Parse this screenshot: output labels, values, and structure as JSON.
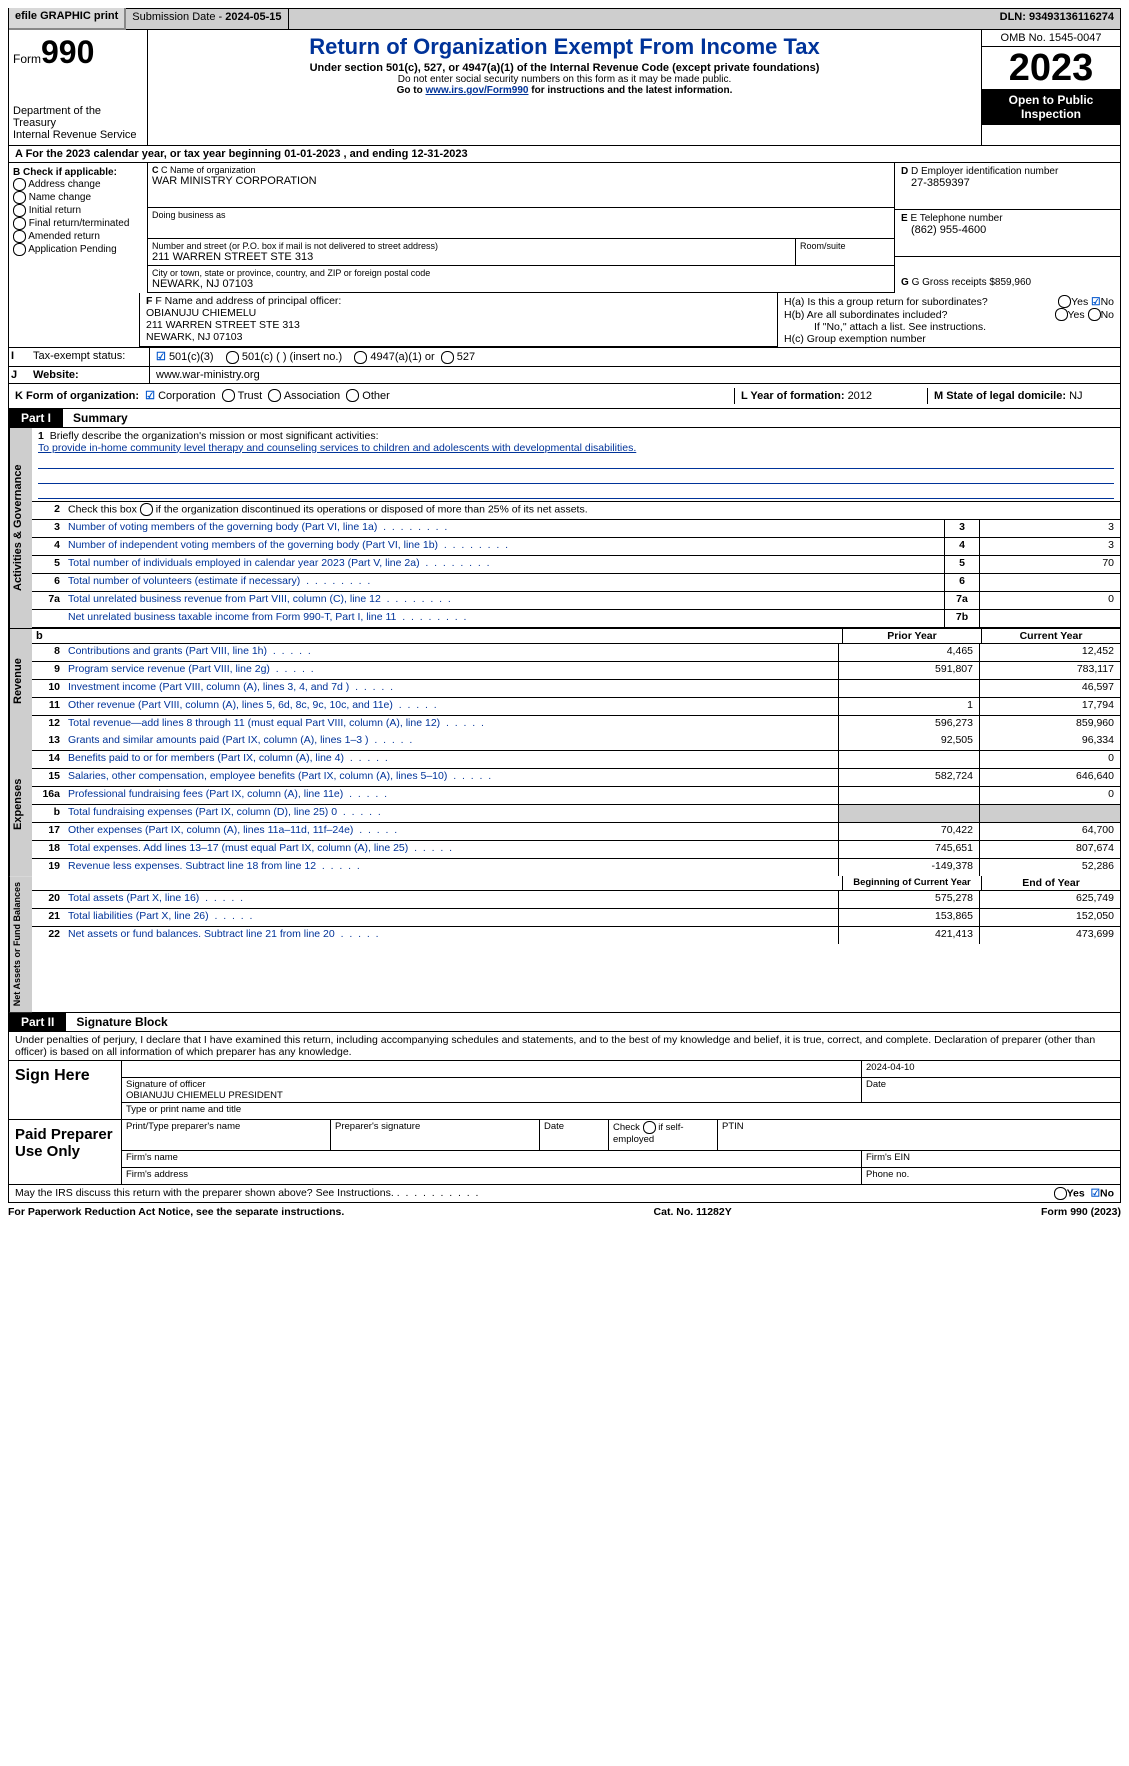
{
  "topbar": {
    "efile": "efile GRAPHIC print",
    "submission_label": "Submission Date - ",
    "submission_date": "2024-05-15",
    "dln_label": "DLN: ",
    "dln": "93493136116274"
  },
  "header": {
    "form_word": "Form",
    "form_num": "990",
    "dept1": "Department of the Treasury",
    "dept2": "Internal Revenue Service",
    "title": "Return of Organization Exempt From Income Tax",
    "sub": "Under section 501(c), 527, or 4947(a)(1) of the Internal Revenue Code (except private foundations)",
    "note1": "Do not enter social security numbers on this form as it may be made public.",
    "note2a": "Go to ",
    "note2_link": "www.irs.gov/Form990",
    "note2b": " for instructions and the latest information.",
    "omb": "OMB No. 1545-0047",
    "year": "2023",
    "open": "Open to Public Inspection"
  },
  "line_a": "A For the 2023 calendar year, or tax year beginning 01-01-2023    , and ending 12-31-2023",
  "col_b": {
    "head": "B Check if applicable:",
    "items": [
      "Address change",
      "Name change",
      "Initial return",
      "Final return/terminated",
      "Amended return",
      "Application Pending"
    ]
  },
  "col_c": {
    "name_lbl": "C Name of organization",
    "name": "WAR MINISTRY CORPORATION",
    "dba_lbl": "Doing business as",
    "dba": "",
    "addr_lbl": "Number and street (or P.O. box if mail is not delivered to street address)",
    "addr": "211 WARREN STREET STE 313",
    "room_lbl": "Room/suite",
    "room": "",
    "city_lbl": "City or town, state or province, country, and ZIP or foreign postal code",
    "city": "NEWARK, NJ  07103"
  },
  "col_de": {
    "d_lbl": "D Employer identification number",
    "d_val": "27-3859397",
    "e_lbl": "E Telephone number",
    "e_val": "(862) 955-4600",
    "g_lbl": "G Gross receipts $ ",
    "g_val": "859,960"
  },
  "row_f": {
    "lbl": "F Name and address of principal officer:",
    "name": "OBIANUJU CHIEMELU",
    "addr1": "211 WARREN STREET STE 313",
    "addr2": "NEWARK, NJ  07103"
  },
  "row_h": {
    "ha": "H(a)  Is this a group return for subordinates?",
    "hb": "H(b)  Are all subordinates included?",
    "hbnote": "If \"No,\" attach a list. See instructions.",
    "hc": "H(c)  Group exemption number ",
    "yes": "Yes",
    "no": "No"
  },
  "row_i": {
    "lbl": "Tax-exempt status:",
    "o1": "501(c)(3)",
    "o2": "501(c) (  ) (insert no.)",
    "o3": "4947(a)(1) or",
    "o4": "527"
  },
  "row_j": {
    "lbl": "Website: ",
    "val": "www.war-ministry.org"
  },
  "row_k": {
    "lbl": "K Form of organization:",
    "o1": "Corporation",
    "o2": "Trust",
    "o3": "Association",
    "o4": "Other"
  },
  "row_l": {
    "lbl": "L Year of formation: ",
    "val": "2012"
  },
  "row_m": {
    "lbl": "M State of legal domicile: ",
    "val": "NJ"
  },
  "part1": {
    "tab": "Part I",
    "title": "Summary"
  },
  "ag": {
    "header": "Activities & Governance",
    "l1_lbl": "Briefly describe the organization's mission or most significant activities:",
    "l1_val": "To provide in-home community level therapy and counseling services to children and adolescents with developmental disabilities.",
    "l2": "Check this box       if the organization discontinued its operations or disposed of more than 25% of its net assets.",
    "rows": [
      {
        "n": "3",
        "d": "Number of voting members of the governing body (Part VI, line 1a)",
        "box": "3",
        "v": "3"
      },
      {
        "n": "4",
        "d": "Number of independent voting members of the governing body (Part VI, line 1b)",
        "box": "4",
        "v": "3"
      },
      {
        "n": "5",
        "d": "Total number of individuals employed in calendar year 2023 (Part V, line 2a)",
        "box": "5",
        "v": "70"
      },
      {
        "n": "6",
        "d": "Total number of volunteers (estimate if necessary)",
        "box": "6",
        "v": ""
      },
      {
        "n": "7a",
        "d": "Total unrelated business revenue from Part VIII, column (C), line 12",
        "box": "7a",
        "v": "0"
      },
      {
        "n": "",
        "d": "Net unrelated business taxable income from Form 990-T, Part I, line 11",
        "box": "7b",
        "v": ""
      }
    ]
  },
  "rev": {
    "header": "Revenue",
    "prior": "Prior Year",
    "current": "Current Year",
    "rows": [
      {
        "n": "8",
        "d": "Contributions and grants (Part VIII, line 1h)",
        "py": "4,465",
        "cy": "12,452"
      },
      {
        "n": "9",
        "d": "Program service revenue (Part VIII, line 2g)",
        "py": "591,807",
        "cy": "783,117"
      },
      {
        "n": "10",
        "d": "Investment income (Part VIII, column (A), lines 3, 4, and 7d )",
        "py": "",
        "cy": "46,597"
      },
      {
        "n": "11",
        "d": "Other revenue (Part VIII, column (A), lines 5, 6d, 8c, 9c, 10c, and 11e)",
        "py": "1",
        "cy": "17,794"
      },
      {
        "n": "12",
        "d": "Total revenue—add lines 8 through 11 (must equal Part VIII, column (A), line 12)",
        "py": "596,273",
        "cy": "859,960"
      }
    ]
  },
  "exp": {
    "header": "Expenses",
    "rows": [
      {
        "n": "13",
        "d": "Grants and similar amounts paid (Part IX, column (A), lines 1–3 )",
        "py": "92,505",
        "cy": "96,334"
      },
      {
        "n": "14",
        "d": "Benefits paid to or for members (Part IX, column (A), line 4)",
        "py": "",
        "cy": "0"
      },
      {
        "n": "15",
        "d": "Salaries, other compensation, employee benefits (Part IX, column (A), lines 5–10)",
        "py": "582,724",
        "cy": "646,640"
      },
      {
        "n": "16a",
        "d": "Professional fundraising fees (Part IX, column (A), line 11e)",
        "py": "",
        "cy": "0"
      },
      {
        "n": "b",
        "d": "Total fundraising expenses (Part IX, column (D), line 25) 0",
        "py": "grey",
        "cy": "grey"
      },
      {
        "n": "17",
        "d": "Other expenses (Part IX, column (A), lines 11a–11d, 11f–24e)",
        "py": "70,422",
        "cy": "64,700"
      },
      {
        "n": "18",
        "d": "Total expenses. Add lines 13–17 (must equal Part IX, column (A), line 25)",
        "py": "745,651",
        "cy": "807,674"
      },
      {
        "n": "19",
        "d": "Revenue less expenses. Subtract line 18 from line 12",
        "py": "-149,378",
        "cy": "52,286"
      }
    ]
  },
  "na": {
    "header": "Net Assets or Fund Balances",
    "boy": "Beginning of Current Year",
    "eoy": "End of Year",
    "rows": [
      {
        "n": "20",
        "d": "Total assets (Part X, line 16)",
        "py": "575,278",
        "cy": "625,749"
      },
      {
        "n": "21",
        "d": "Total liabilities (Part X, line 26)",
        "py": "153,865",
        "cy": "152,050"
      },
      {
        "n": "22",
        "d": "Net assets or fund balances. Subtract line 21 from line 20",
        "py": "421,413",
        "cy": "473,699"
      }
    ]
  },
  "part2": {
    "tab": "Part II",
    "title": "Signature Block"
  },
  "penalty": "Under penalties of perjury, I declare that I have examined this return, including accompanying schedules and statements, and to the best of my knowledge and belief, it is true, correct, and complete. Declaration of preparer (other than officer) is based on all information of which preparer has any knowledge.",
  "sign": {
    "sign_here": "Sign Here",
    "date": "2024-04-10",
    "sig_of": "Signature of officer",
    "date_lbl": "Date",
    "officer": "OBIANUJU CHIEMELU PRESIDENT",
    "type_lbl": "Type or print name and title"
  },
  "paid": {
    "lbl": "Paid Preparer Use Only",
    "c1": "Print/Type preparer's name",
    "c2": "Preparer's signature",
    "c3": "Date",
    "c4a": "Check",
    "c4b": "if self-employed",
    "c5": "PTIN",
    "fn": "Firm's name",
    "fe": "Firm's EIN",
    "fa": "Firm's address",
    "fp": "Phone no."
  },
  "discuss": "May the IRS discuss this return with the preparer shown above? See Instructions.",
  "footer": {
    "l": "For Paperwork Reduction Act Notice, see the separate instructions.",
    "c": "Cat. No. 11282Y",
    "r": "Form 990 (2023)"
  }
}
